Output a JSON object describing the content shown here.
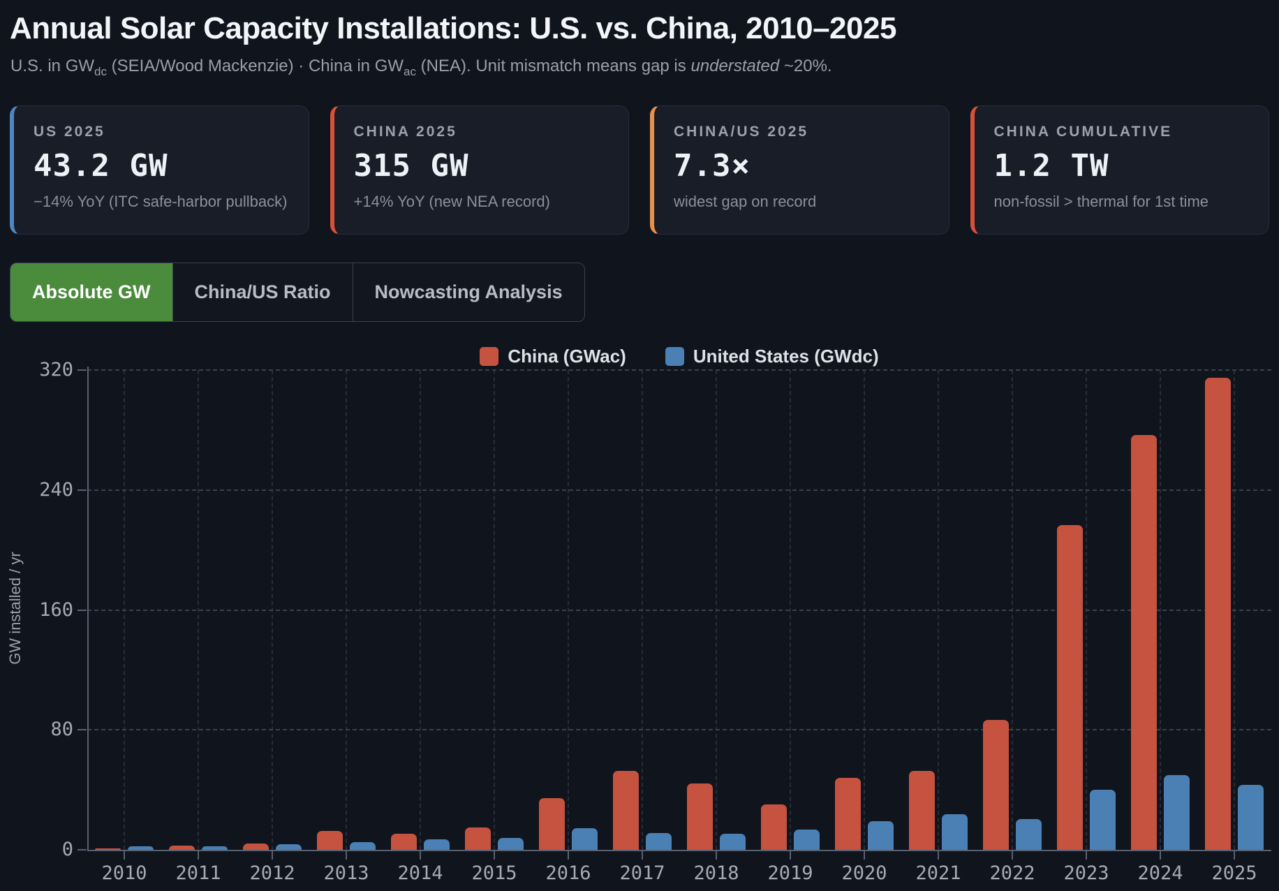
{
  "header": {
    "title": "Annual Solar Capacity Installations: U.S. vs. China, 2010–2025",
    "subtitle": {
      "p1": "U.S. in GW",
      "sub1": "dc",
      "p2": " (SEIA/Wood Mackenzie) · China in GW",
      "sub2": "ac",
      "p3": " (NEA). Unit mismatch means gap is ",
      "italic": "understated",
      "p4": " ~20%."
    }
  },
  "stat_cards": [
    {
      "label": "US 2025",
      "value": "43.2 GW",
      "note": "−14% YoY (ITC safe-harbor pullback)",
      "accent": "#4e86bf"
    },
    {
      "label": "CHINA 2025",
      "value": "315 GW",
      "note": "+14% YoY (new NEA record)",
      "accent": "#d95138"
    },
    {
      "label": "CHINA/US 2025",
      "value": "7.3×",
      "note": "widest gap on record",
      "accent": "#e8914c"
    },
    {
      "label": "CHINA CUMULATIVE",
      "value": "1.2 TW",
      "note": "non-fossil > thermal for 1st time",
      "accent": "#d5513a"
    }
  ],
  "tabs": [
    {
      "label": "Absolute GW",
      "active": true,
      "active_color": "#4a8b3c"
    },
    {
      "label": "China/US Ratio",
      "active": false
    },
    {
      "label": "Nowcasting Analysis",
      "active": false
    }
  ],
  "chart_data": {
    "type": "bar",
    "categories": [
      "2010",
      "2011",
      "2012",
      "2013",
      "2014",
      "2015",
      "2016",
      "2017",
      "2018",
      "2019",
      "2020",
      "2021",
      "2022",
      "2023",
      "2024",
      "2025"
    ],
    "series": [
      {
        "name": "China (GWac)",
        "color": "#c65340",
        "values": [
          0.8,
          3.0,
          4.3,
          12.8,
          10.6,
          15.0,
          34.5,
          52.7,
          44.2,
          30.2,
          48.2,
          52.6,
          86.8,
          216.6,
          276.8,
          315
        ]
      },
      {
        "name": "United States (GWdc)",
        "color": "#4a80b4",
        "values": [
          2.4,
          2.3,
          3.7,
          5.2,
          7.0,
          7.8,
          14.6,
          11.1,
          10.8,
          13.7,
          19.3,
          23.6,
          20.3,
          40.2,
          49.8,
          43.2
        ]
      }
    ],
    "ylabel": "GW installed / yr",
    "yticks": [
      0,
      80,
      160,
      240,
      320
    ],
    "ylim": [
      0,
      320
    ],
    "grid": true,
    "legend_position": "top"
  }
}
